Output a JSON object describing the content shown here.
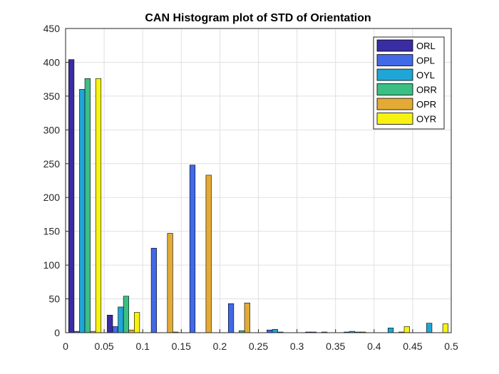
{
  "chart_data": {
    "type": "bar",
    "title": "CAN Histogram plot of STD of Orientation",
    "xlabel": "",
    "ylabel": "",
    "xlim": [
      0,
      0.5
    ],
    "ylim": [
      0,
      450
    ],
    "x_ticks": [
      "0",
      "0.05",
      "0.1",
      "0.15",
      "0.2",
      "0.25",
      "0.3",
      "0.35",
      "0.4",
      "0.45",
      "0.5"
    ],
    "y_ticks": [
      "0",
      "50",
      "100",
      "150",
      "200",
      "250",
      "300",
      "350",
      "400",
      "450"
    ],
    "grid": true,
    "legend_position": "top-right",
    "categories": [
      "0-0.05",
      "0.05-0.1",
      "0.1-0.15",
      "0.15-0.2",
      "0.2-0.25",
      "0.25-0.3",
      "0.3-0.35",
      "0.35-0.4",
      "0.4-0.45",
      "0.45-0.5"
    ],
    "series": [
      {
        "name": "ORL",
        "color": "#3a2ca3",
        "values": [
          404,
          26,
          0,
          0,
          0,
          0,
          0,
          0,
          0,
          0
        ]
      },
      {
        "name": "OPL",
        "color": "#4169e8",
        "values": [
          2,
          9,
          125,
          248,
          43,
          4,
          1,
          1,
          0,
          0
        ]
      },
      {
        "name": "OYL",
        "color": "#1fa6d6",
        "values": [
          360,
          38,
          0,
          0,
          0,
          5,
          1,
          2,
          7,
          14
        ]
      },
      {
        "name": "ORR",
        "color": "#3cbf85",
        "values": [
          376,
          54,
          0,
          0,
          3,
          1,
          0,
          1,
          0,
          0
        ]
      },
      {
        "name": "OPR",
        "color": "#e3ab35",
        "values": [
          2,
          4,
          147,
          233,
          44,
          0,
          1,
          1,
          1,
          0
        ]
      },
      {
        "name": "OYR",
        "color": "#f7f212",
        "values": [
          376,
          30,
          1,
          0,
          0,
          0,
          0,
          0,
          9,
          13
        ]
      }
    ]
  }
}
